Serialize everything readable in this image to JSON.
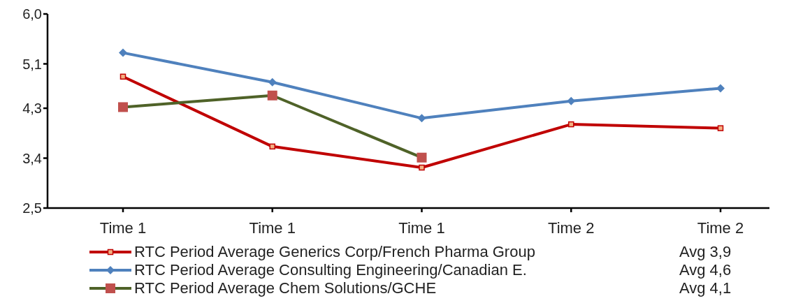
{
  "chart_data": {
    "type": "line",
    "categories": [
      "Time 1",
      "Time 1",
      "Time 1",
      "Time 2",
      "Time 2"
    ],
    "series": [
      {
        "name": "RTC Period Average Generics Corp/French Pharma Group",
        "color": "#c00000",
        "marker": "square",
        "values": [
          4.87,
          3.61,
          3.23,
          4.01,
          3.94
        ]
      },
      {
        "name": "RTC Period Average Consulting Engineering/Canadian E.",
        "color": "#4f81bd",
        "marker": "diamond",
        "values": [
          5.3,
          4.77,
          4.12,
          4.43,
          4.66
        ]
      },
      {
        "name": "RTC Period Average Chem Solutions/GCHE",
        "color": "#4f6228",
        "marker": "square",
        "values": [
          4.32,
          4.53,
          3.41,
          null,
          null
        ]
      }
    ],
    "ylim": [
      2.5,
      6.0
    ],
    "yticks": [
      {
        "value": 2.5,
        "label": "2,5"
      },
      {
        "value": 3.4,
        "label": "3,4"
      },
      {
        "value": 4.3,
        "label": "4,3"
      },
      {
        "value": 5.1,
        "label": "5,1"
      },
      {
        "value": 6.0,
        "label": "6,0"
      }
    ],
    "grid": false,
    "legend": "bottom",
    "annotations": [
      "Avg 3,9",
      "Avg 4,6",
      "Avg 4,1"
    ]
  }
}
